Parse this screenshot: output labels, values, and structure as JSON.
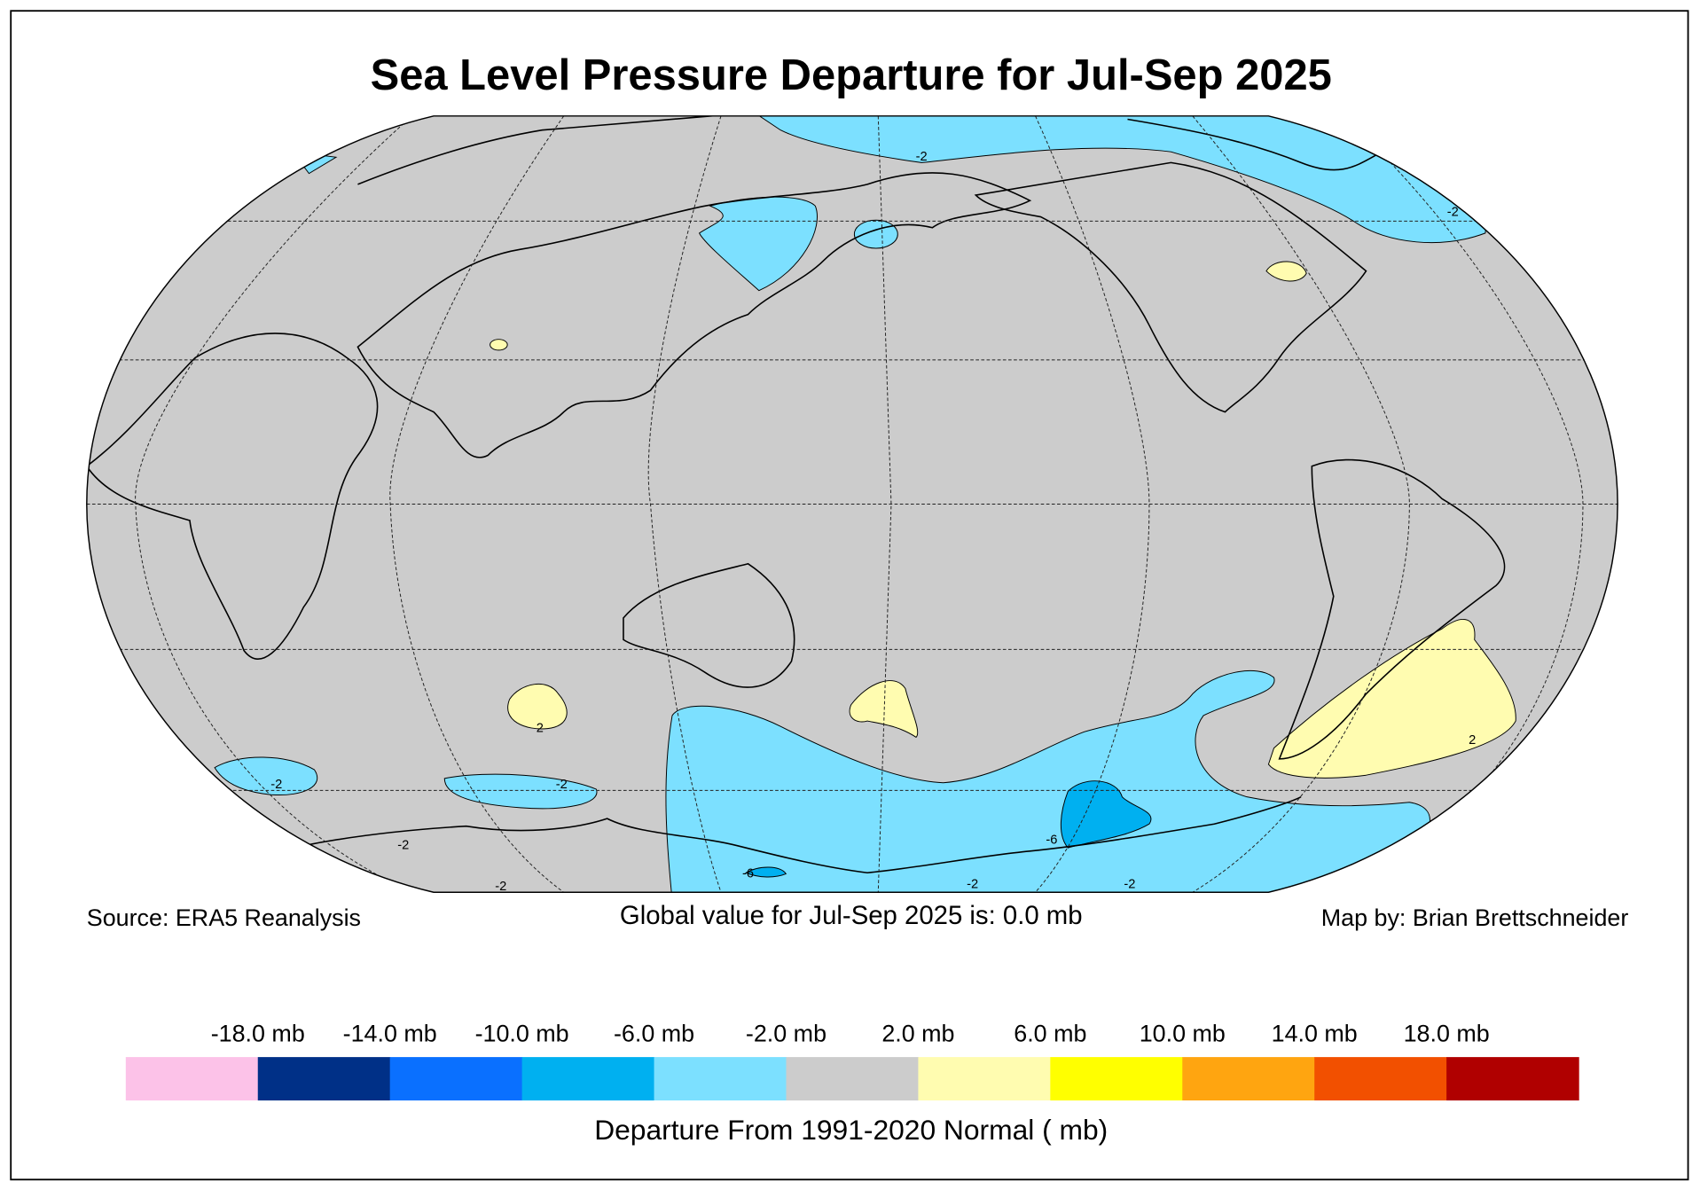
{
  "title": "Sea Level Pressure Departure for Jul-Sep 2025",
  "source": "Source: ERA5 Reanalysis",
  "global_value": "Global value for Jul-Sep 2025 is: 0.0 mb",
  "credit": "Map by: Brian Brettschneider",
  "map": {
    "contour_labels": [
      "-2",
      "-2",
      "2",
      "-2",
      "-2",
      "2",
      "-6",
      "-6",
      "-2",
      "-2",
      "-2",
      "-2"
    ]
  },
  "legend": {
    "labels": [
      "-18.0 mb",
      "-14.0 mb",
      "-10.0 mb",
      "-6.0 mb",
      "-2.0 mb",
      "2.0 mb",
      "6.0 mb",
      "10.0 mb",
      "14.0 mb",
      "18.0 mb"
    ],
    "colors": [
      "#fcc2e8",
      "#003087",
      "#0a70ff",
      "#00b0f0",
      "#7ce0ff",
      "#cccccc",
      "#fffcb0",
      "#ffff00",
      "#ffa510",
      "#f25000",
      "#b00000"
    ],
    "title": "Departure From 1991-2020 Normal ( mb)"
  }
}
